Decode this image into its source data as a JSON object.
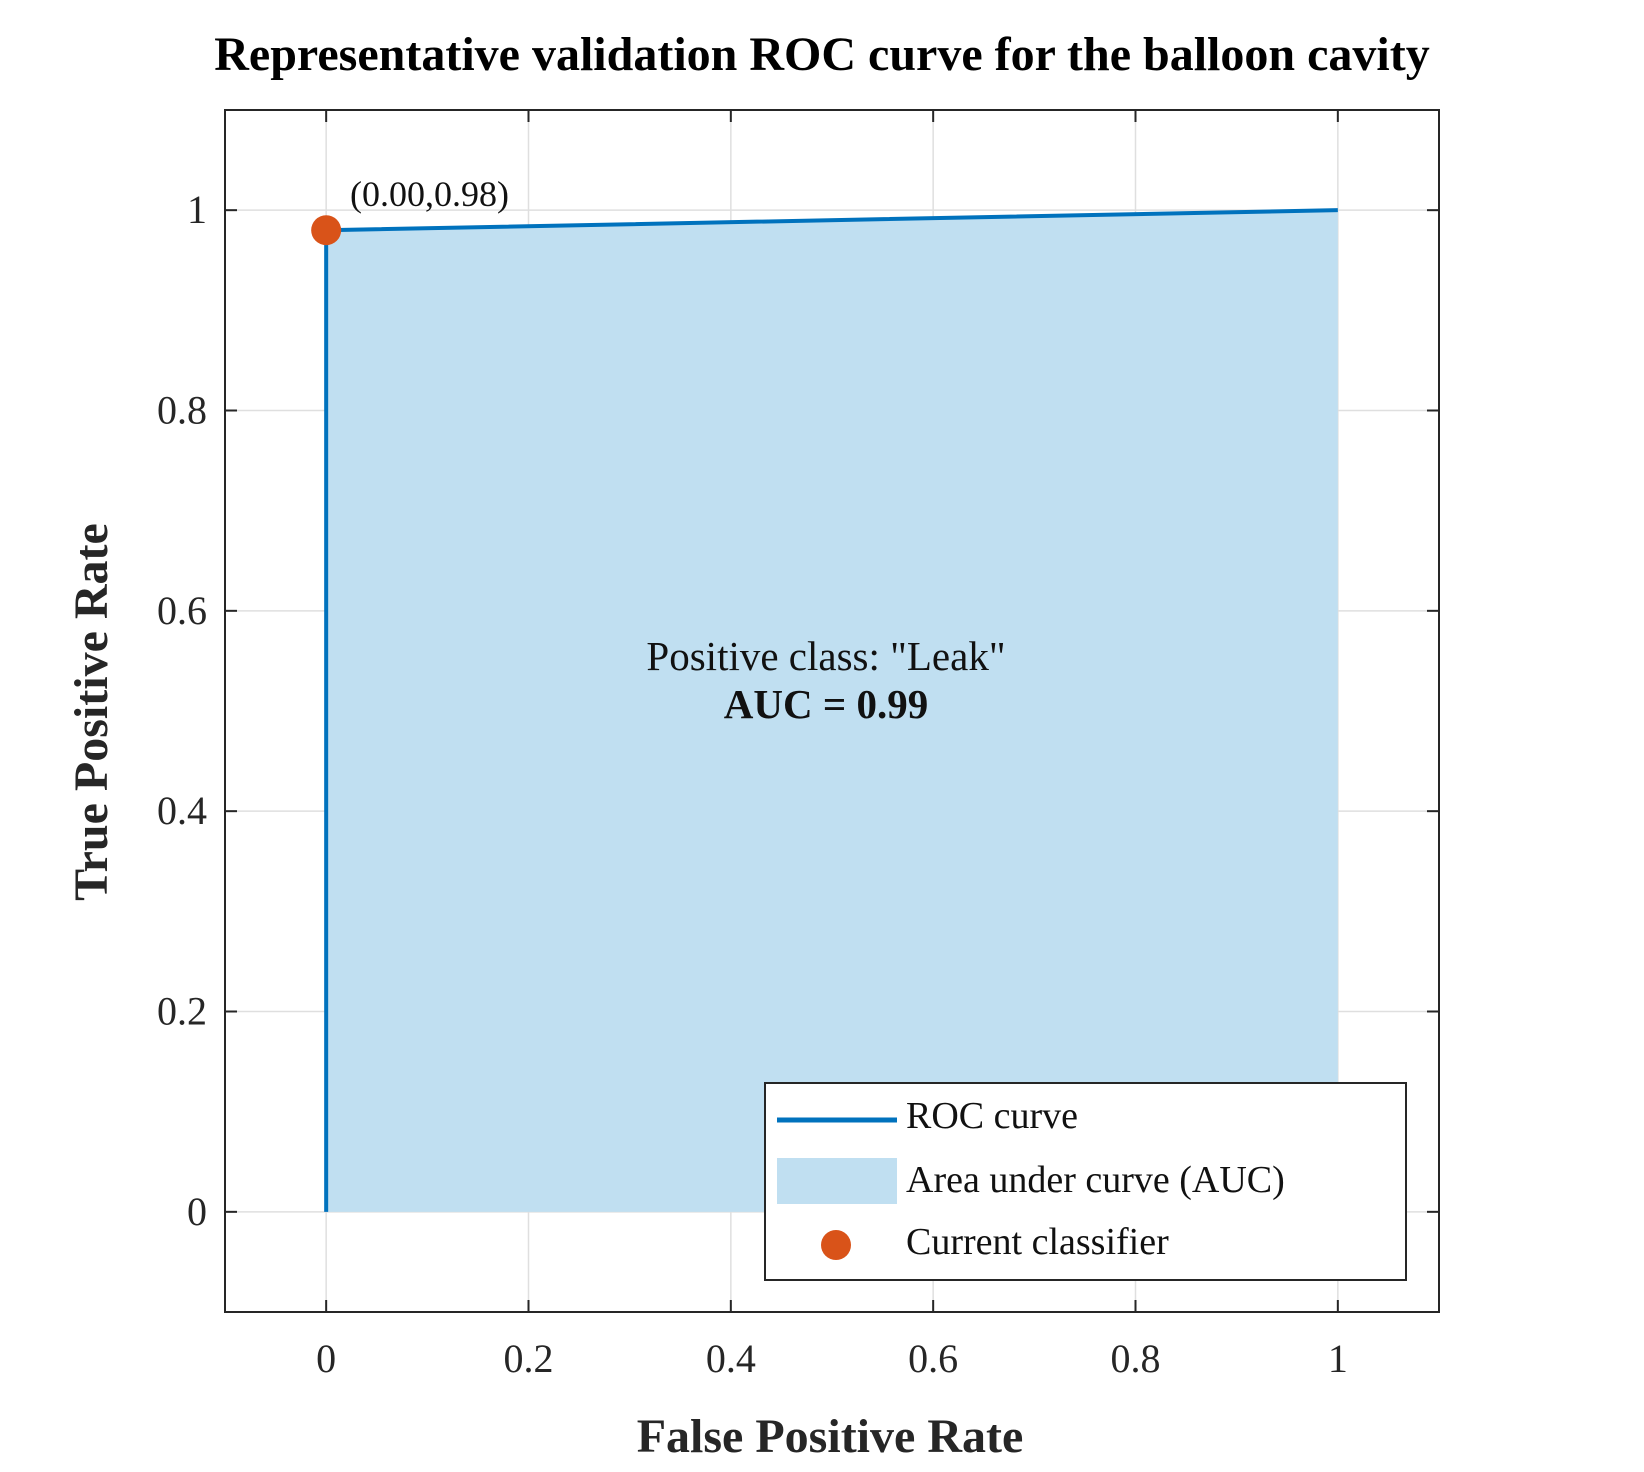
{
  "chart_data": {
    "type": "line",
    "title": "Representative validation ROC curve for the balloon cavity",
    "xlabel": "False Positive Rate",
    "ylabel": "True Positive Rate",
    "xlim": [
      -0.1,
      1.1
    ],
    "ylim": [
      -0.1,
      1.1
    ],
    "xticks": [
      0,
      0.2,
      0.4,
      0.6,
      0.8,
      1
    ],
    "xtick_labels": [
      "0",
      "0.2",
      "0.4",
      "0.6",
      "0.8",
      "1"
    ],
    "yticks": [
      0,
      0.2,
      0.4,
      0.6,
      0.8,
      1
    ],
    "ytick_labels": [
      "0",
      "0.2",
      "0.4",
      "0.6",
      "0.8",
      "1"
    ],
    "grid": true,
    "series": [
      {
        "name": "ROC curve",
        "x": [
          0,
          0,
          1
        ],
        "y": [
          0,
          0.98,
          1
        ],
        "color": "#0072bd"
      },
      {
        "name": "Area under curve (AUC)",
        "type": "area",
        "x": [
          0,
          0,
          1,
          1
        ],
        "y": [
          0,
          0.98,
          1,
          0
        ],
        "color": "#c0dff1"
      },
      {
        "name": "Current classifier",
        "type": "scatter",
        "x": [
          0.0
        ],
        "y": [
          0.98
        ],
        "color": "#d95319"
      }
    ],
    "point_label": "(0.00,0.98)",
    "annotation": {
      "line1": "Positive class: \"Leak\"",
      "line2": "AUC = 0.99"
    },
    "legend": {
      "placement": "bottom-right",
      "entries": [
        "ROC curve",
        "Area under curve (AUC)",
        "Current classifier"
      ]
    }
  }
}
